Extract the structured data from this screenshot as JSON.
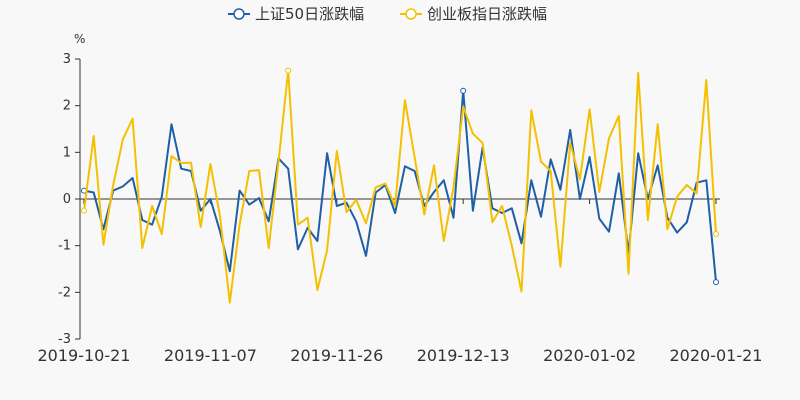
{
  "chart_data": {
    "type": "line",
    "ylabel": "%",
    "ylim": [
      -3,
      3
    ],
    "y_ticks": [
      3,
      2,
      1,
      0,
      -1,
      -2,
      -3
    ],
    "x_tick_labels": [
      "2019-10-21",
      "2019-11-07",
      "2019-11-26",
      "2019-12-13",
      "2020-01-02",
      "2020-01-21"
    ],
    "legend_position": "top-center",
    "grid": false,
    "dates": [
      "2019-10-21",
      "2019-10-22",
      "2019-10-23",
      "2019-10-24",
      "2019-10-25",
      "2019-10-28",
      "2019-10-29",
      "2019-10-30",
      "2019-10-31",
      "2019-11-01",
      "2019-11-04",
      "2019-11-05",
      "2019-11-06",
      "2019-11-07",
      "2019-11-08",
      "2019-11-11",
      "2019-11-12",
      "2019-11-13",
      "2019-11-14",
      "2019-11-15",
      "2019-11-18",
      "2019-11-19",
      "2019-11-20",
      "2019-11-21",
      "2019-11-22",
      "2019-11-25",
      "2019-11-26",
      "2019-11-27",
      "2019-11-28",
      "2019-11-29",
      "2019-12-02",
      "2019-12-03",
      "2019-12-04",
      "2019-12-05",
      "2019-12-06",
      "2019-12-09",
      "2019-12-10",
      "2019-12-11",
      "2019-12-12",
      "2019-12-13",
      "2019-12-16",
      "2019-12-17",
      "2019-12-18",
      "2019-12-19",
      "2019-12-20",
      "2019-12-23",
      "2019-12-24",
      "2019-12-25",
      "2019-12-26",
      "2019-12-27",
      "2019-12-30",
      "2019-12-31",
      "2020-01-02",
      "2020-01-03",
      "2020-01-06",
      "2020-01-07",
      "2020-01-08",
      "2020-01-09",
      "2020-01-10",
      "2020-01-13",
      "2020-01-14",
      "2020-01-15",
      "2020-01-16",
      "2020-01-17",
      "2020-01-20",
      "2020-01-21"
    ],
    "series": [
      {
        "name": "上证50日涨跌幅",
        "color": "#1f5fa6",
        "values": [
          0.18,
          0.14,
          -0.65,
          0.18,
          0.27,
          0.45,
          -0.45,
          -0.55,
          0.05,
          1.6,
          0.65,
          0.6,
          -0.25,
          0.0,
          -0.7,
          -1.55,
          0.18,
          -0.12,
          0.02,
          -0.48,
          0.87,
          0.65,
          -1.08,
          -0.62,
          -0.9,
          0.98,
          -0.15,
          -0.08,
          -0.48,
          -1.22,
          0.14,
          0.3,
          -0.3,
          0.7,
          0.6,
          -0.15,
          0.15,
          0.4,
          -0.4,
          2.32,
          -0.25,
          1.1,
          -0.2,
          -0.3,
          -0.2,
          -0.95,
          0.4,
          -0.38,
          0.85,
          0.2,
          1.48,
          0.0,
          0.9,
          -0.42,
          -0.7,
          0.55,
          -1.15,
          0.98,
          0.0,
          0.72,
          -0.4,
          -0.72,
          -0.5,
          0.35,
          0.4,
          -1.78
        ]
      },
      {
        "name": "创业板指日涨跌幅",
        "color": "#f5c000",
        "values": [
          -0.25,
          1.35,
          -0.98,
          0.3,
          1.28,
          1.72,
          -1.05,
          -0.15,
          -0.75,
          0.92,
          0.77,
          0.78,
          -0.6,
          0.75,
          -0.38,
          -2.22,
          -0.55,
          0.6,
          0.62,
          -1.05,
          0.8,
          2.75,
          -0.55,
          -0.4,
          -1.95,
          -1.1,
          1.03,
          -0.28,
          -0.02,
          -0.52,
          0.25,
          0.33,
          -0.15,
          2.12,
          0.9,
          -0.33,
          0.72,
          -0.9,
          0.25,
          1.98,
          1.4,
          1.2,
          -0.5,
          -0.15,
          -1.0,
          -1.98,
          1.9,
          0.8,
          0.6,
          -1.45,
          1.2,
          0.42,
          1.92,
          0.15,
          1.3,
          1.78,
          -1.6,
          2.7,
          -0.45,
          1.6,
          -0.65,
          0.05,
          0.3,
          0.12,
          2.55,
          -0.75
        ]
      }
    ]
  }
}
